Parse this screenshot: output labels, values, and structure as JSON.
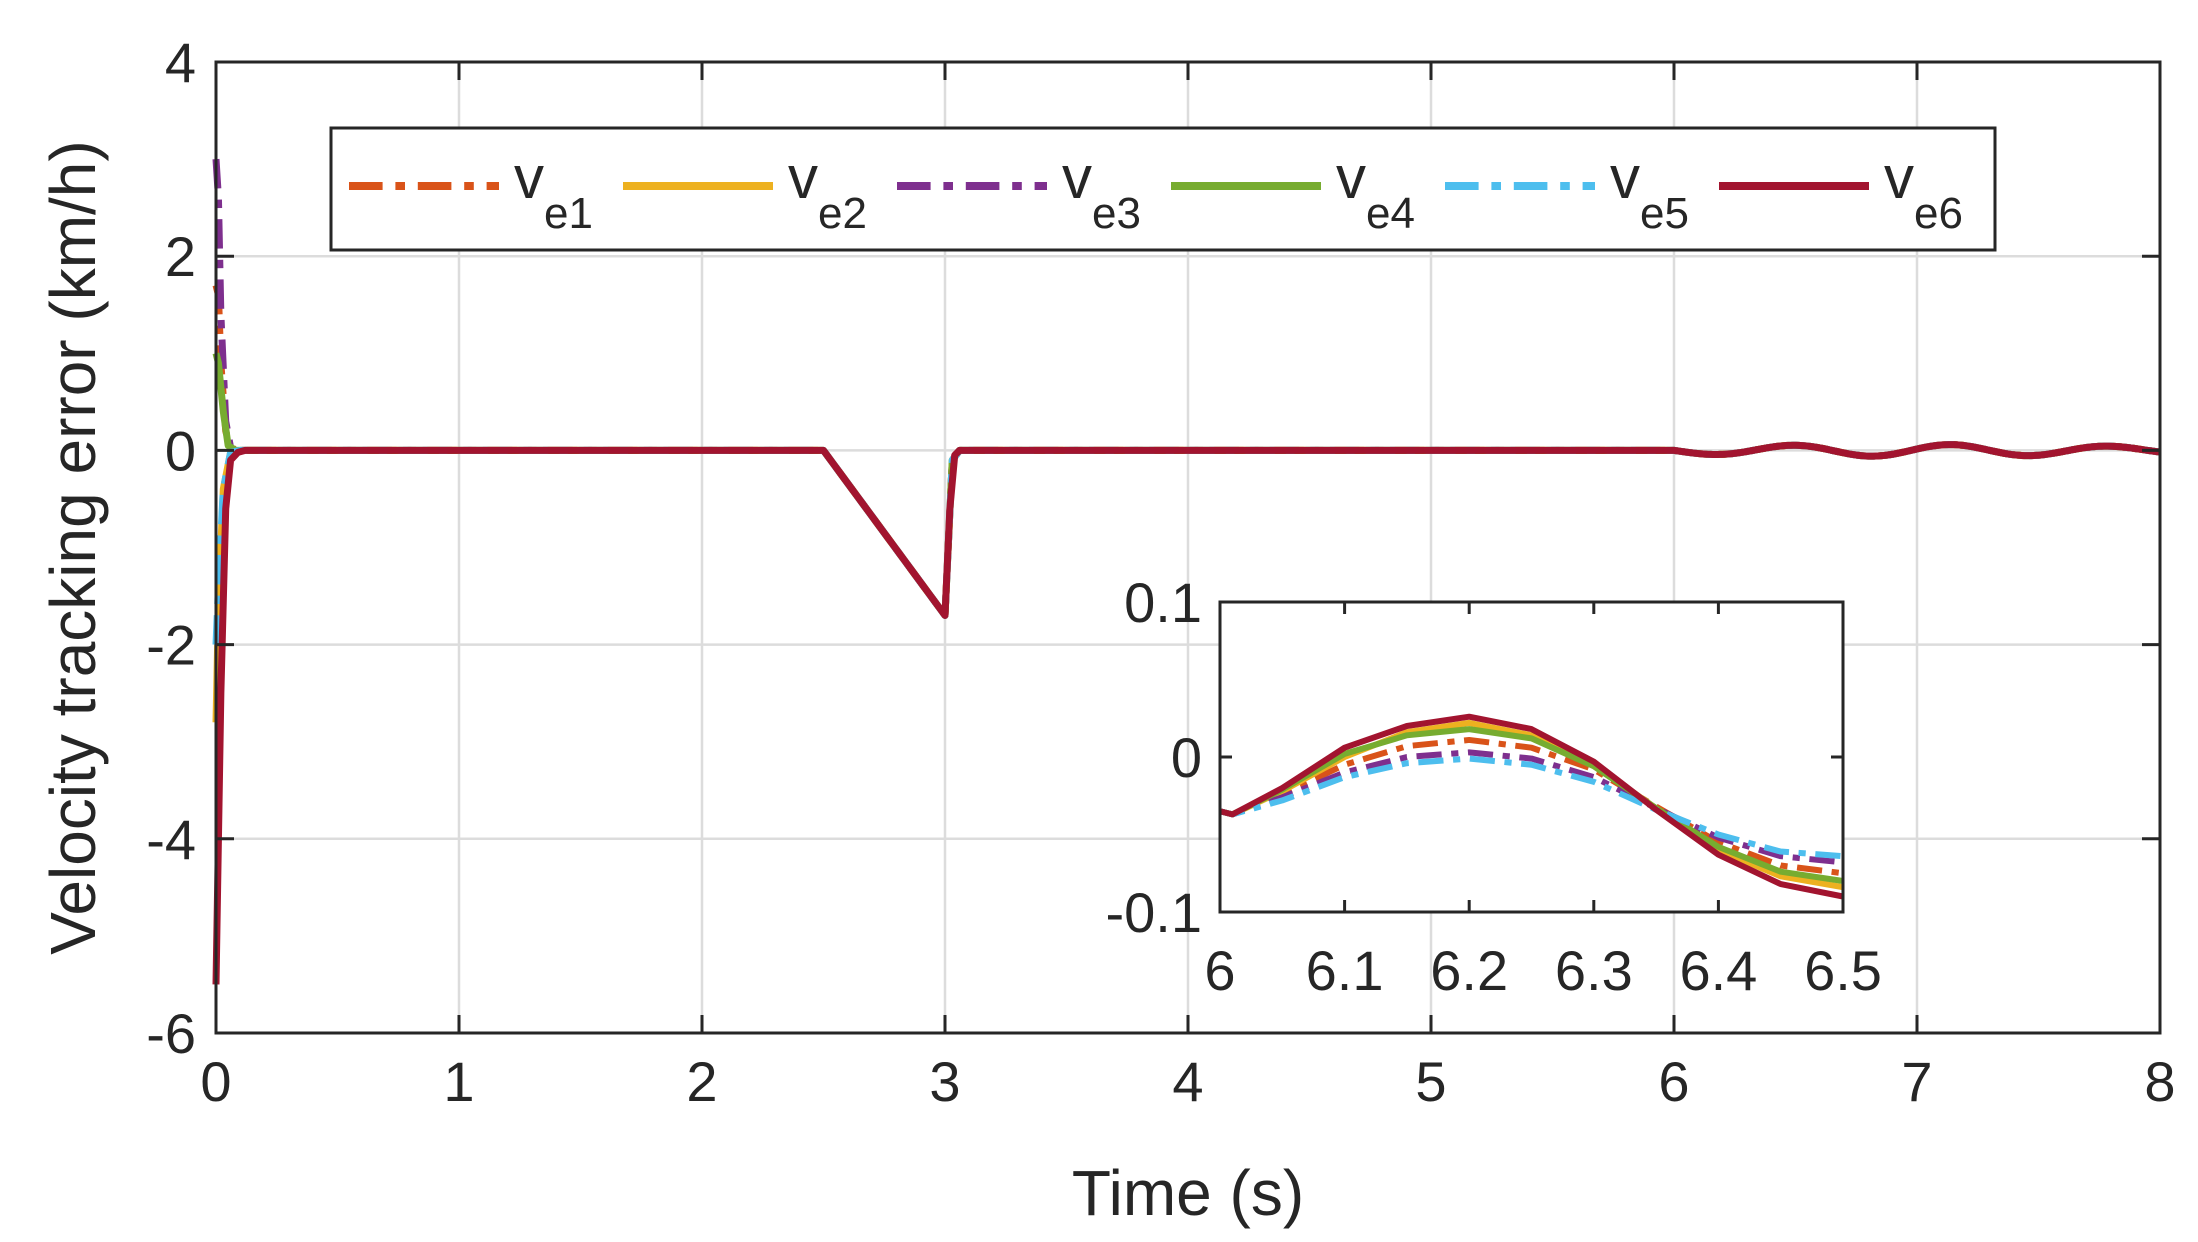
{
  "chart_data": [
    {
      "type": "line",
      "role": "main",
      "xlabel": "Time (s)",
      "ylabel": "Velocity tracking error (km/h)",
      "xlim": [
        0,
        8
      ],
      "ylim": [
        -6,
        4
      ],
      "xticks": [
        0,
        1,
        2,
        3,
        4,
        5,
        6,
        7,
        8
      ],
      "yticks": [
        -6,
        -4,
        -2,
        0,
        2,
        4
      ],
      "grid": true,
      "legend": {
        "placement": "top",
        "entries": [
          {
            "base": "v",
            "sub": "e1",
            "color": "#D95319",
            "dash": "dashdot"
          },
          {
            "base": "v",
            "sub": "e2",
            "color": "#EDB120",
            "dash": "solid"
          },
          {
            "base": "v",
            "sub": "e3",
            "color": "#7E2F8E",
            "dash": "dashdot"
          },
          {
            "base": "v",
            "sub": "e4",
            "color": "#77AC30",
            "dash": "solid"
          },
          {
            "base": "v",
            "sub": "e5",
            "color": "#4DBEEE",
            "dash": "dashdot"
          },
          {
            "base": "v",
            "sub": "e6",
            "color": "#A2142F",
            "dash": "solid"
          }
        ]
      },
      "series": [
        {
          "name": "ve1",
          "color": "#D95319",
          "dash": "dashdot",
          "points": [
            [
              0,
              1.7
            ],
            [
              0.01,
              1.6
            ],
            [
              0.02,
              0.9
            ],
            [
              0.04,
              0.2
            ],
            [
              0.06,
              0.02
            ],
            [
              0.1,
              0
            ],
            [
              2.5,
              0
            ],
            [
              3.0,
              -1.7
            ],
            [
              3.03,
              -0.1
            ],
            [
              3.06,
              0
            ],
            [
              6.0,
              0
            ]
          ]
        },
        {
          "name": "ve2",
          "color": "#EDB120",
          "dash": "solid",
          "points": [
            [
              0,
              -2.8
            ],
            [
              0.01,
              -1.6
            ],
            [
              0.03,
              -0.4
            ],
            [
              0.06,
              -0.02
            ],
            [
              0.1,
              0
            ],
            [
              2.5,
              0
            ],
            [
              3.0,
              -1.7
            ],
            [
              3.03,
              -0.1
            ],
            [
              3.06,
              0
            ],
            [
              6.0,
              0
            ]
          ]
        },
        {
          "name": "ve3",
          "color": "#7E2F8E",
          "dash": "dashdot",
          "points": [
            [
              0,
              3.0
            ],
            [
              0.01,
              2.6
            ],
            [
              0.02,
              1.4
            ],
            [
              0.04,
              0.3
            ],
            [
              0.06,
              0.03
            ],
            [
              0.1,
              0
            ],
            [
              2.5,
              0
            ],
            [
              3.0,
              -1.7
            ],
            [
              3.03,
              -0.1
            ],
            [
              3.06,
              0
            ],
            [
              6.0,
              0
            ]
          ]
        },
        {
          "name": "ve4",
          "color": "#77AC30",
          "dash": "solid",
          "points": [
            [
              0,
              1.0
            ],
            [
              0.01,
              0.9
            ],
            [
              0.03,
              0.4
            ],
            [
              0.05,
              0.05
            ],
            [
              0.08,
              0
            ],
            [
              2.5,
              0
            ],
            [
              3.0,
              -1.7
            ],
            [
              3.03,
              -0.1
            ],
            [
              3.06,
              0
            ],
            [
              6.0,
              0
            ]
          ]
        },
        {
          "name": "ve5",
          "color": "#4DBEEE",
          "dash": "dashdot",
          "points": [
            [
              0,
              -2.0
            ],
            [
              0.01,
              -1.4
            ],
            [
              0.03,
              -0.4
            ],
            [
              0.06,
              -0.02
            ],
            [
              0.1,
              0
            ],
            [
              2.5,
              0
            ],
            [
              3.0,
              -1.7
            ],
            [
              3.03,
              -0.1
            ],
            [
              3.06,
              0
            ],
            [
              6.0,
              0
            ]
          ]
        },
        {
          "name": "ve6",
          "color": "#A2142F",
          "dash": "solid",
          "points": [
            [
              0,
              -5.5
            ],
            [
              0.02,
              -2.5
            ],
            [
              0.04,
              -0.6
            ],
            [
              0.06,
              -0.1
            ],
            [
              0.09,
              -0.02
            ],
            [
              0.12,
              0
            ],
            [
              2.5,
              0
            ],
            [
              3.0,
              -1.7
            ],
            [
              3.02,
              -0.6
            ],
            [
              3.04,
              -0.05
            ],
            [
              3.06,
              0
            ],
            [
              6.0,
              0
            ]
          ]
        }
      ],
      "oscillation": {
        "start": 6.0,
        "end": 8.0,
        "amplitude": 0.06,
        "period": 0.65,
        "phase_origin": 6.0
      }
    },
    {
      "type": "line",
      "role": "inset",
      "xlim": [
        6,
        6.5
      ],
      "ylim": [
        -0.1,
        0.1
      ],
      "xticks": [
        6,
        6.1,
        6.2,
        6.3,
        6.4,
        6.5
      ],
      "xtick_labels": [
        "6",
        "6.1",
        "6.2",
        "6.3",
        "6.4",
        "6.5"
      ],
      "yticks": [
        -0.1,
        0,
        0.1
      ],
      "ytick_labels": [
        "-0.1",
        "0",
        "0.1"
      ],
      "grid": false,
      "series": [
        {
          "name": "ve1",
          "color": "#D95319",
          "dash": "dashdot",
          "points": [
            [
              6.0,
              -0.035
            ],
            [
              6.01,
              -0.037
            ],
            [
              6.05,
              -0.024
            ],
            [
              6.1,
              -0.005
            ],
            [
              6.15,
              0.007
            ],
            [
              6.2,
              0.011
            ],
            [
              6.25,
              0.006
            ],
            [
              6.3,
              -0.008
            ],
            [
              6.35,
              -0.032
            ],
            [
              6.4,
              -0.055
            ],
            [
              6.45,
              -0.07
            ],
            [
              6.5,
              -0.075
            ]
          ]
        },
        {
          "name": "ve2",
          "color": "#EDB120",
          "dash": "solid",
          "points": [
            [
              6.0,
              -0.035
            ],
            [
              6.01,
              -0.037
            ],
            [
              6.05,
              -0.022
            ],
            [
              6.1,
              0.0
            ],
            [
              6.15,
              0.016
            ],
            [
              6.2,
              0.022
            ],
            [
              6.25,
              0.014
            ],
            [
              6.3,
              -0.005
            ],
            [
              6.35,
              -0.033
            ],
            [
              6.4,
              -0.06
            ],
            [
              6.45,
              -0.077
            ],
            [
              6.5,
              -0.084
            ]
          ]
        },
        {
          "name": "ve3",
          "color": "#7E2F8E",
          "dash": "dashdot",
          "points": [
            [
              6.0,
              -0.035
            ],
            [
              6.01,
              -0.037
            ],
            [
              6.05,
              -0.026
            ],
            [
              6.1,
              -0.01
            ],
            [
              6.15,
              0.0
            ],
            [
              6.2,
              0.003
            ],
            [
              6.25,
              -0.001
            ],
            [
              6.3,
              -0.013
            ],
            [
              6.35,
              -0.033
            ],
            [
              6.4,
              -0.052
            ],
            [
              6.45,
              -0.064
            ],
            [
              6.5,
              -0.068
            ]
          ]
        },
        {
          "name": "ve4",
          "color": "#77AC30",
          "dash": "solid",
          "points": [
            [
              6.0,
              -0.035
            ],
            [
              6.01,
              -0.037
            ],
            [
              6.05,
              -0.021
            ],
            [
              6.1,
              0.002
            ],
            [
              6.15,
              0.014
            ],
            [
              6.2,
              0.018
            ],
            [
              6.25,
              0.012
            ],
            [
              6.3,
              -0.006
            ],
            [
              6.35,
              -0.033
            ],
            [
              6.4,
              -0.058
            ],
            [
              6.45,
              -0.074
            ],
            [
              6.5,
              -0.08
            ]
          ]
        },
        {
          "name": "ve5",
          "color": "#4DBEEE",
          "dash": "dashdot",
          "points": [
            [
              6.0,
              -0.035
            ],
            [
              6.01,
              -0.037
            ],
            [
              6.05,
              -0.028
            ],
            [
              6.1,
              -0.013
            ],
            [
              6.15,
              -0.004
            ],
            [
              6.2,
              -0.001
            ],
            [
              6.25,
              -0.005
            ],
            [
              6.3,
              -0.016
            ],
            [
              6.35,
              -0.034
            ],
            [
              6.4,
              -0.05
            ],
            [
              6.45,
              -0.061
            ],
            [
              6.5,
              -0.064
            ]
          ]
        },
        {
          "name": "ve6",
          "color": "#A2142F",
          "dash": "solid",
          "points": [
            [
              6.0,
              -0.035
            ],
            [
              6.01,
              -0.037
            ],
            [
              6.05,
              -0.02
            ],
            [
              6.1,
              0.006
            ],
            [
              6.15,
              0.02
            ],
            [
              6.2,
              0.026
            ],
            [
              6.25,
              0.018
            ],
            [
              6.3,
              -0.003
            ],
            [
              6.35,
              -0.034
            ],
            [
              6.4,
              -0.063
            ],
            [
              6.45,
              -0.082
            ],
            [
              6.5,
              -0.09
            ]
          ]
        }
      ]
    }
  ]
}
